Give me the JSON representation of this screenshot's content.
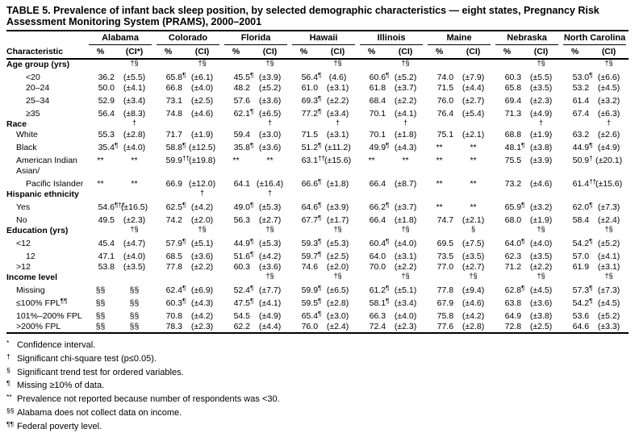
{
  "title": {
    "line1": "TABLE 5. Prevalence of infant back sleep position, by selected demographic characteristics — eight states, Pregnancy Risk",
    "line2": "Assessment Monitoring System (PRAMS), 2000–2001"
  },
  "header": {
    "characteristic": "Characteristic",
    "states": [
      {
        "name": "Alabama",
        "pct": "%",
        "ci": "(CI*)"
      },
      {
        "name": "Colorado",
        "pct": "%",
        "ci": "(CI)"
      },
      {
        "name": "Florida",
        "pct": "%",
        "ci": "(CI)"
      },
      {
        "name": "Hawaii",
        "pct": "%",
        "ci": "(CI)"
      },
      {
        "name": "Illinois",
        "pct": "%",
        "ci": "(CI)"
      },
      {
        "name": "Maine",
        "pct": "%",
        "ci": "(CI)"
      },
      {
        "name": "Nebraska",
        "pct": "%",
        "ci": "(CI)"
      },
      {
        "name": "North Carolina",
        "pct": "%",
        "ci": "(CI)"
      }
    ]
  },
  "rows": [
    {
      "type": "section",
      "label": "Age group (yrs)",
      "markers": [
        "†§",
        "†§",
        "†§",
        "†§",
        "†§",
        "",
        "†§",
        "†§"
      ]
    },
    {
      "type": "data",
      "label": "<20",
      "indent": 2,
      "cells": [
        [
          "36.2",
          "",
          "(±5.5)"
        ],
        [
          "65.8",
          "¶",
          "(±6.1)"
        ],
        [
          "45.5",
          "¶",
          "(±3.9)"
        ],
        [
          "56.4",
          "¶",
          "(4.6)"
        ],
        [
          "60.6",
          "¶",
          "(±5.2)"
        ],
        [
          "74.0",
          "",
          "(±7.9)"
        ],
        [
          "60.3",
          "",
          "(±5.5)"
        ],
        [
          "53.0",
          "¶",
          "(±6.6)"
        ]
      ]
    },
    {
      "type": "data",
      "label": "20–24",
      "indent": 2,
      "cells": [
        [
          "50.0",
          "",
          "(±4.1)"
        ],
        [
          "66.8",
          "",
          "(±4.0)"
        ],
        [
          "48.2",
          "",
          "(±5.2)"
        ],
        [
          "61.0",
          "",
          "(±3.1)"
        ],
        [
          "61.8",
          "",
          "(±3.7)"
        ],
        [
          "71.5",
          "",
          "(±4.4)"
        ],
        [
          "65.8",
          "",
          "(±3.5)"
        ],
        [
          "53.2",
          "",
          "(±4.5)"
        ]
      ]
    },
    {
      "type": "data",
      "label": "25–34",
      "indent": 2,
      "cells": [
        [
          "52.9",
          "",
          "(±3.4)"
        ],
        [
          "73.1",
          "",
          "(±2.5)"
        ],
        [
          "57.6",
          "",
          "(±3.6)"
        ],
        [
          "69.3",
          "¶",
          "(±2.2)"
        ],
        [
          "68.4",
          "",
          "(±2.2)"
        ],
        [
          "76.0",
          "",
          "(±2.7)"
        ],
        [
          "69.4",
          "",
          "(±2.3)"
        ],
        [
          "61.4",
          "",
          "(±3.2)"
        ]
      ]
    },
    {
      "type": "data",
      "label": "≥35",
      "indent": 2,
      "cells": [
        [
          "56.4",
          "",
          "(±8.3)"
        ],
        [
          "74.8",
          "",
          "(±4.6)"
        ],
        [
          "62.1",
          "¶",
          "(±6.5)"
        ],
        [
          "77.2",
          "¶",
          "(±3.4)"
        ],
        [
          "70.1",
          "",
          "(±4.1)"
        ],
        [
          "76.4",
          "",
          "(±5.4)"
        ],
        [
          "71.3",
          "",
          "(±4.9)"
        ],
        [
          "67.4",
          "",
          "(±6.3)"
        ]
      ]
    },
    {
      "type": "section",
      "label": "Race",
      "markers": [
        "†",
        "",
        "†",
        "†",
        "†",
        "",
        "†",
        "†"
      ]
    },
    {
      "type": "data",
      "label": "White",
      "indent": 1,
      "cells": [
        [
          "55.3",
          "",
          "(±2.8)"
        ],
        [
          "71.7",
          "",
          "(±1.9)"
        ],
        [
          "59.4",
          "",
          "(±3.0)"
        ],
        [
          "71.5",
          "",
          "(±3.1)"
        ],
        [
          "70.1",
          "",
          "(±1.8)"
        ],
        [
          "75.1",
          "",
          "(±2.1)"
        ],
        [
          "68.8",
          "",
          "(±1.9)"
        ],
        [
          "63.2",
          "",
          "(±2.6)"
        ]
      ]
    },
    {
      "type": "data",
      "label": "Black",
      "indent": 1,
      "cells": [
        [
          "35.4",
          "¶",
          "(±4.0)"
        ],
        [
          "58.8",
          "¶",
          "(±12.5)"
        ],
        [
          "35.8",
          "¶",
          "(±3.6)"
        ],
        [
          "51.2",
          "¶",
          "(±11.2)"
        ],
        [
          "49.9",
          "¶",
          "(±4.3)"
        ],
        [
          "**",
          "",
          "**"
        ],
        [
          "48.1",
          "¶",
          "(±3.8)"
        ],
        [
          "44.9",
          "¶",
          "(±4.9)"
        ]
      ]
    },
    {
      "type": "data",
      "label": "American Indian",
      "indent": 1,
      "cells": [
        [
          "**",
          "",
          "**"
        ],
        [
          "59.9",
          "††",
          "(±19.8)"
        ],
        [
          "**",
          "",
          "**"
        ],
        [
          "63.1",
          "††",
          "(±15.6)"
        ],
        [
          "**",
          "",
          "**"
        ],
        [
          "**",
          "",
          "**"
        ],
        [
          "75.5",
          "",
          "(±3.9)"
        ],
        [
          "50.9",
          "†",
          "(±20.1)"
        ]
      ]
    },
    {
      "type": "labelonly",
      "label": "Asian/",
      "indent": 1
    },
    {
      "type": "data",
      "label": "Pacific Islander",
      "indent": 2,
      "cells": [
        [
          "**",
          "",
          "**"
        ],
        [
          "66.9",
          "",
          "(±12.0)"
        ],
        [
          "64.1",
          "",
          "(±16.4)"
        ],
        [
          "66.6",
          "¶",
          "(±1.8)"
        ],
        [
          "66.4",
          "",
          "(±8.7)"
        ],
        [
          "**",
          "",
          "**"
        ],
        [
          "73.2",
          "",
          "(±4.6)"
        ],
        [
          "61.4",
          "††",
          "(±15.6)"
        ]
      ]
    },
    {
      "type": "section",
      "label": "Hispanic ethnicity",
      "markers": [
        "",
        "†",
        "†",
        "",
        "",
        "",
        "",
        ""
      ]
    },
    {
      "type": "data",
      "label": "Yes",
      "indent": 1,
      "cells": [
        [
          "54.6",
          "¶††",
          "(±16.5)"
        ],
        [
          "62.5",
          "¶",
          "(±4.2)"
        ],
        [
          "49.0",
          "¶",
          "(±5.3)"
        ],
        [
          "64.6",
          "¶",
          "(±3.9)"
        ],
        [
          "66.2",
          "¶",
          "(±3.7)"
        ],
        [
          "**",
          "",
          "**"
        ],
        [
          "65.9",
          "¶",
          "(±3.2)"
        ],
        [
          "62.0",
          "¶",
          "(±7.3)"
        ]
      ]
    },
    {
      "type": "data",
      "label": "No",
      "indent": 1,
      "cells": [
        [
          "49.5",
          "",
          "(±2.3)"
        ],
        [
          "74.2",
          "",
          "(±2.0)"
        ],
        [
          "56.3",
          "",
          "(±2.7)"
        ],
        [
          "67.7",
          "¶",
          "(±1.7)"
        ],
        [
          "66.4",
          "",
          "(±1.8)"
        ],
        [
          "74.7",
          "",
          "(±2.1)"
        ],
        [
          "68.0",
          "",
          "(±1.9)"
        ],
        [
          "58.4",
          "",
          "(±2.4)"
        ]
      ]
    },
    {
      "type": "section",
      "label": "Education (yrs)",
      "markers": [
        "†§",
        "†§",
        "†§",
        "†§",
        "†§",
        "§",
        "†§",
        "†§"
      ]
    },
    {
      "type": "data",
      "label": "<12",
      "indent": 1,
      "cells": [
        [
          "45.4",
          "",
          "(±4.7)"
        ],
        [
          "57.9",
          "¶",
          "(±5.1)"
        ],
        [
          "44.9",
          "¶",
          "(±5.3)"
        ],
        [
          "59.3",
          "¶",
          "(±5.3)"
        ],
        [
          "60.4",
          "¶",
          "(±4.0)"
        ],
        [
          "69.5",
          "",
          "(±7.5)"
        ],
        [
          "64.0",
          "¶",
          "(±4.0)"
        ],
        [
          "54.2",
          "¶",
          "(±5.2)"
        ]
      ]
    },
    {
      "type": "data",
      "label": "12",
      "indent": 2,
      "cells": [
        [
          "47.1",
          "",
          "(±4.0)"
        ],
        [
          "68.5",
          "",
          "(±3.6)"
        ],
        [
          "51.6",
          "¶",
          "(±4.2)"
        ],
        [
          "59.7",
          "¶",
          "(±2.5)"
        ],
        [
          "64.0",
          "",
          "(±3.1)"
        ],
        [
          "73.5",
          "",
          "(±3.5)"
        ],
        [
          "62.3",
          "",
          "(±3.5)"
        ],
        [
          "57.0",
          "",
          "(±4.1)"
        ]
      ]
    },
    {
      "type": "data",
      "label": ">12",
      "indent": 1,
      "cells": [
        [
          "53.8",
          "",
          "(±3.5)"
        ],
        [
          "77.8",
          "",
          "(±2.2)"
        ],
        [
          "60.3",
          "",
          "(±3.6)"
        ],
        [
          "74.6",
          "",
          "(±2.0)"
        ],
        [
          "70.0",
          "",
          "(±2.2)"
        ],
        [
          "77.0",
          "",
          "(±2.7)"
        ],
        [
          "71.2",
          "",
          "(±2.2)"
        ],
        [
          "61.9",
          "",
          "(±3.1)"
        ]
      ]
    },
    {
      "type": "section",
      "label": "Income level",
      "markers": [
        "",
        "",
        "†§",
        "†§",
        "†§",
        "†§",
        "†§",
        "†§"
      ]
    },
    {
      "type": "data",
      "label": "Missing",
      "indent": 1,
      "cells": [
        [
          "§§",
          "",
          "§§"
        ],
        [
          "62.4",
          "¶",
          "(±6.9)"
        ],
        [
          "52.4",
          "¶",
          "(±7.7)"
        ],
        [
          "59.9",
          "¶",
          "(±6.5)"
        ],
        [
          "61.2",
          "¶",
          "(±5.1)"
        ],
        [
          "77.8",
          "",
          "(±9.4)"
        ],
        [
          "62.8",
          "¶",
          "(±4.5)"
        ],
        [
          "57.3",
          "¶",
          "(±7.3)"
        ]
      ]
    },
    {
      "type": "data",
      "label": "≤100% FPL",
      "labelSup": "¶¶",
      "indent": 1,
      "cells": [
        [
          "§§",
          "",
          "§§"
        ],
        [
          "60.3",
          "¶",
          "(±4.3)"
        ],
        [
          "47.5",
          "¶",
          "(±4.1)"
        ],
        [
          "59.5",
          "¶",
          "(±2.8)"
        ],
        [
          "58.1",
          "¶",
          "(±3.4)"
        ],
        [
          "67.9",
          "",
          "(±4.6)"
        ],
        [
          "63.8",
          "",
          "(±3.6)"
        ],
        [
          "54.2",
          "¶",
          "(±4.5)"
        ]
      ]
    },
    {
      "type": "data",
      "label": "101%–200% FPL",
      "indent": 1,
      "cells": [
        [
          "§§",
          "",
          "§§"
        ],
        [
          "70.8",
          "",
          "(±4.2)"
        ],
        [
          "54.5",
          "",
          "(±4.9)"
        ],
        [
          "65.4",
          "¶",
          "(±3.0)"
        ],
        [
          "66.3",
          "",
          "(±4.0)"
        ],
        [
          "75.8",
          "",
          "(±4.2)"
        ],
        [
          "64.9",
          "",
          "(±3.8)"
        ],
        [
          "53.6",
          "",
          "(±5.2)"
        ]
      ]
    },
    {
      "type": "data",
      "label": ">200% FPL",
      "indent": 1,
      "cells": [
        [
          "§§",
          "",
          "§§"
        ],
        [
          "78.3",
          "",
          "(±2.3)"
        ],
        [
          "62.2",
          "",
          "(±4.4)"
        ],
        [
          "76.0",
          "",
          "(±2.4)"
        ],
        [
          "72.4",
          "",
          "(±2.3)"
        ],
        [
          "77.6",
          "",
          "(±2.8)"
        ],
        [
          "72.8",
          "",
          "(±2.5)"
        ],
        [
          "64.6",
          "",
          "(±3.3)"
        ]
      ]
    }
  ],
  "footnotes": [
    {
      "mark": "*",
      "text": "Confidence interval."
    },
    {
      "mark": "†",
      "text": "Significant chi-square test (p≤0.05)."
    },
    {
      "mark": "§",
      "text": "Significant trend test for ordered variables."
    },
    {
      "mark": "¶",
      "text": "Missing ≥10% of data."
    },
    {
      "mark": "**",
      "text": "Prevalence not reported because number of respondents was <30."
    },
    {
      "mark": "§§",
      "text": "Alabama does not collect data on income."
    },
    {
      "mark": "¶¶",
      "text": "Federal poverty level."
    }
  ]
}
